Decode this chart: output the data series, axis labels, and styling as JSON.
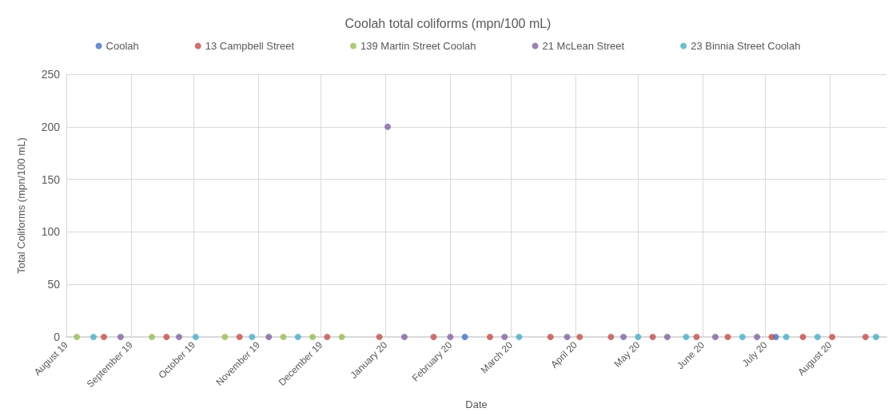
{
  "chart_data": {
    "type": "scatter",
    "title": "Coolah total coliforms (mpn/100 mL)",
    "xlabel": "Date",
    "ylabel": "Total Coliforms (mpn/100 mL)",
    "legend": "top",
    "grid": true,
    "marker": "circle",
    "xlim": [
      "2019-08-01",
      "2020-08-28"
    ],
    "xticks": [
      {
        "value": "2019-08-01",
        "label": "August 19"
      },
      {
        "value": "2019-09-01",
        "label": "September 19"
      },
      {
        "value": "2019-10-01",
        "label": "October 19"
      },
      {
        "value": "2019-11-01",
        "label": "November 19"
      },
      {
        "value": "2019-12-01",
        "label": "December 19"
      },
      {
        "value": "2020-01-01",
        "label": "January 20"
      },
      {
        "value": "2020-02-01",
        "label": "February 20"
      },
      {
        "value": "2020-03-01",
        "label": "March 20"
      },
      {
        "value": "2020-04-01",
        "label": "April 20"
      },
      {
        "value": "2020-05-01",
        "label": "May 20"
      },
      {
        "value": "2020-06-01",
        "label": "June 20"
      },
      {
        "value": "2020-07-01",
        "label": "July 20"
      },
      {
        "value": "2020-08-01",
        "label": "August 20"
      }
    ],
    "ylim": [
      0,
      250
    ],
    "yticks": [
      0,
      50,
      100,
      150,
      200,
      250
    ],
    "series": [
      {
        "name": "Coolah",
        "color": "#4472c4",
        "x": [
          "2020-02-08",
          "2020-07-06"
        ],
        "values": [
          0,
          0
        ]
      },
      {
        "name": "13 Campbell Street",
        "color": "#c0504d",
        "x": [
          "2019-08-19",
          "2019-09-18",
          "2019-10-23",
          "2019-12-04",
          "2019-12-29",
          "2020-01-24",
          "2020-02-20",
          "2020-03-20",
          "2020-04-03",
          "2020-04-18",
          "2020-05-08",
          "2020-05-29",
          "2020-06-13",
          "2020-07-04",
          "2020-07-19",
          "2020-08-02",
          "2020-08-18"
        ],
        "values": [
          0,
          0,
          0,
          0,
          0,
          0,
          0,
          0,
          0,
          0,
          0,
          0,
          0,
          0,
          0,
          0,
          0
        ]
      },
      {
        "name": "139 Martin Street Coolah",
        "color": "#9bbb59",
        "x": [
          "2019-08-06",
          "2019-09-11",
          "2019-10-16",
          "2019-11-13",
          "2019-11-27",
          "2019-12-11"
        ],
        "values": [
          0,
          0,
          0,
          0,
          0,
          0
        ]
      },
      {
        "name": "21 McLean Street",
        "color": "#8064a2",
        "x": [
          "2019-08-27",
          "2019-09-24",
          "2019-11-06",
          "2020-01-02",
          "2020-01-10",
          "2020-02-01",
          "2020-02-27",
          "2020-03-28",
          "2020-04-24",
          "2020-05-15",
          "2020-06-07",
          "2020-06-27"
        ],
        "values": [
          0,
          0,
          0,
          200,
          0,
          0,
          0,
          0,
          0,
          0,
          0,
          0
        ]
      },
      {
        "name": "23 Binnia Street Coolah",
        "color": "#4bacc6",
        "x": [
          "2019-08-14",
          "2019-10-02",
          "2019-10-29",
          "2019-11-20",
          "2020-03-05",
          "2020-05-01",
          "2020-05-24",
          "2020-06-20",
          "2020-07-11",
          "2020-07-26",
          "2020-08-23"
        ],
        "values": [
          0,
          0,
          0,
          0,
          0,
          0,
          0,
          0,
          0,
          0,
          0
        ]
      }
    ]
  }
}
